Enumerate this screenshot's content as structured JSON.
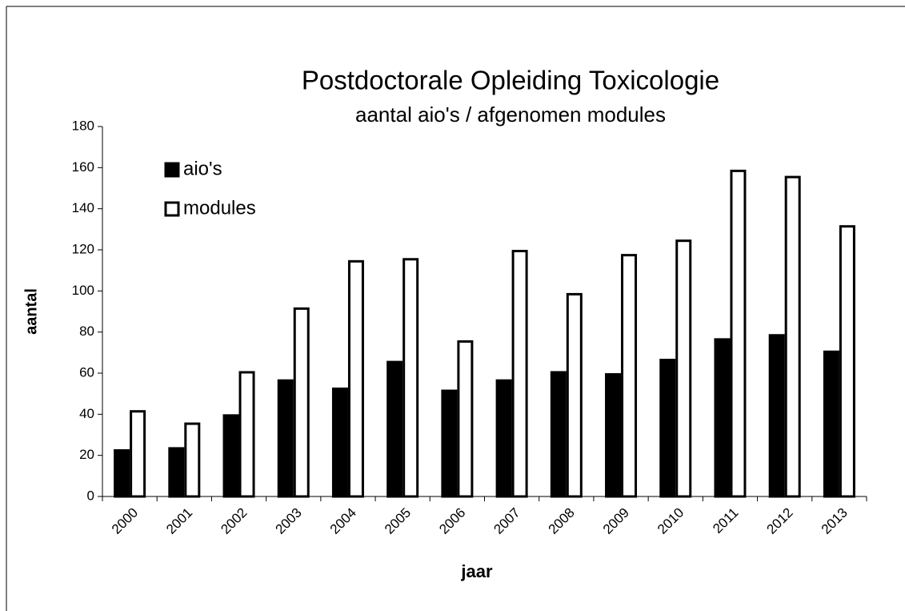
{
  "chart_data": {
    "type": "bar",
    "title": "Postdoctorale Opleiding Toxicologie",
    "subtitle": "aantal aio's / afgenomen modules",
    "x_label": "jaar",
    "y_label": "aantal",
    "categories": [
      "2000",
      "2001",
      "2002",
      "2003",
      "2004",
      "2005",
      "2006",
      "2007",
      "2008",
      "2009",
      "2010",
      "2011",
      "2012",
      "2013"
    ],
    "series": [
      {
        "name": "aio's",
        "color": "#000000",
        "values": [
          23,
          24,
          40,
          57,
          53,
          66,
          52,
          57,
          61,
          60,
          67,
          77,
          79,
          71
        ]
      },
      {
        "name": "modules",
        "color": "#ffffff",
        "values": [
          42,
          36,
          61,
          92,
          115,
          116,
          76,
          120,
          99,
          118,
          125,
          159,
          156,
          132
        ]
      }
    ],
    "ylim": [
      0,
      180
    ],
    "yticks": [
      0,
      20,
      40,
      60,
      80,
      100,
      120,
      140,
      160,
      180
    ],
    "grid": false,
    "legend": "upper left"
  }
}
